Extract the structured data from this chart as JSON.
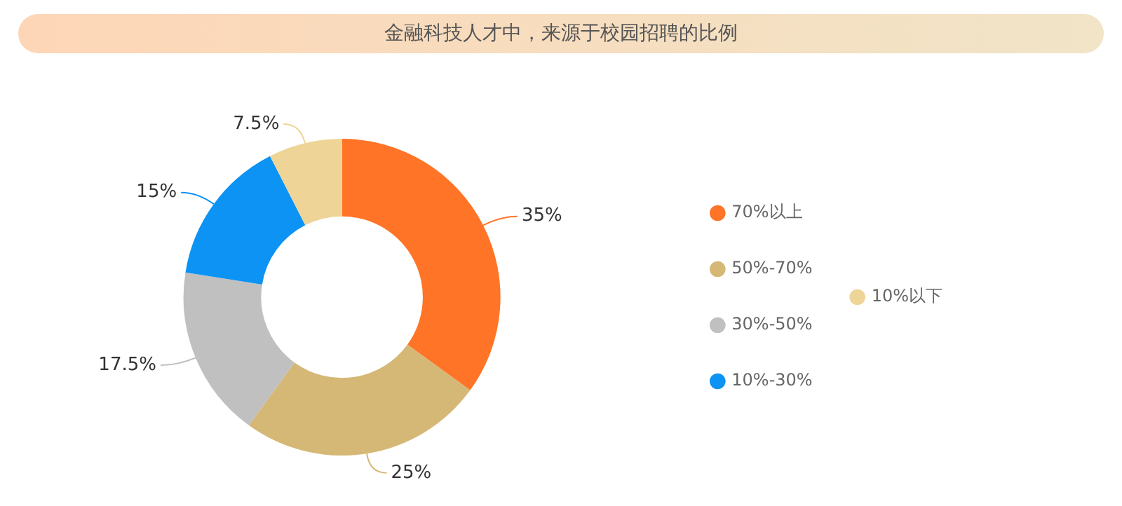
{
  "chart_data": {
    "type": "donut",
    "title": "金融科技人才中，来源于校园招聘的比例",
    "categories": [
      "70%以上",
      "50%-70%",
      "30%-50%",
      "10%-30%",
      "10%以下"
    ],
    "values": [
      35,
      25,
      17.5,
      15,
      7.5
    ],
    "value_labels": [
      "35%",
      "25%",
      "17.5%",
      "15%",
      "7.5%"
    ],
    "colors": [
      "#ff7426",
      "#d5b876",
      "#c0c0c0",
      "#0c93f4",
      "#eed597"
    ],
    "legend": "right"
  }
}
